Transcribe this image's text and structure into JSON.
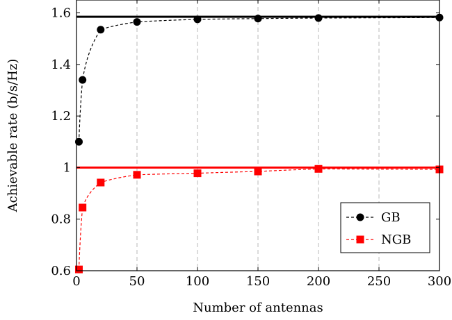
{
  "chart_data": {
    "type": "line",
    "xlabel": "Number of antennas",
    "ylabel": "Achievable rate (b/s/Hz)",
    "xlim": [
      0,
      300
    ],
    "ylim": [
      0.6,
      1.65
    ],
    "x_ticks": [
      0,
      50,
      100,
      150,
      200,
      250,
      300
    ],
    "x_tick_labels": [
      "0",
      "50",
      "100",
      "150",
      "200",
      "250",
      "300"
    ],
    "y_ticks": [
      0.6,
      0.8,
      1.0,
      1.2,
      1.4,
      1.6
    ],
    "y_tick_labels": [
      "0.6",
      "0.8",
      "1",
      "1.2",
      "1.4",
      "1.6"
    ],
    "grid": "vertical dashed",
    "legend_position": "bottom-right",
    "series": [
      {
        "name": "GB",
        "color": "#000000",
        "marker": "circle",
        "line_style": "dashed",
        "x": [
          2,
          5,
          20,
          50,
          100,
          150,
          200,
          300
        ],
        "y": [
          1.1,
          1.34,
          1.535,
          1.565,
          1.575,
          1.578,
          1.58,
          1.582
        ]
      },
      {
        "name": "NGB",
        "color": "#ff0000",
        "marker": "square",
        "line_style": "dashed",
        "x": [
          2,
          5,
          20,
          50,
          100,
          150,
          200,
          300
        ],
        "y": [
          0.605,
          0.845,
          0.942,
          0.972,
          0.978,
          0.985,
          0.995,
          0.993
        ]
      }
    ],
    "reference_lines": [
      {
        "y": 1.585,
        "color": "#000000"
      },
      {
        "y": 1.0,
        "color": "#ff0000"
      }
    ]
  }
}
